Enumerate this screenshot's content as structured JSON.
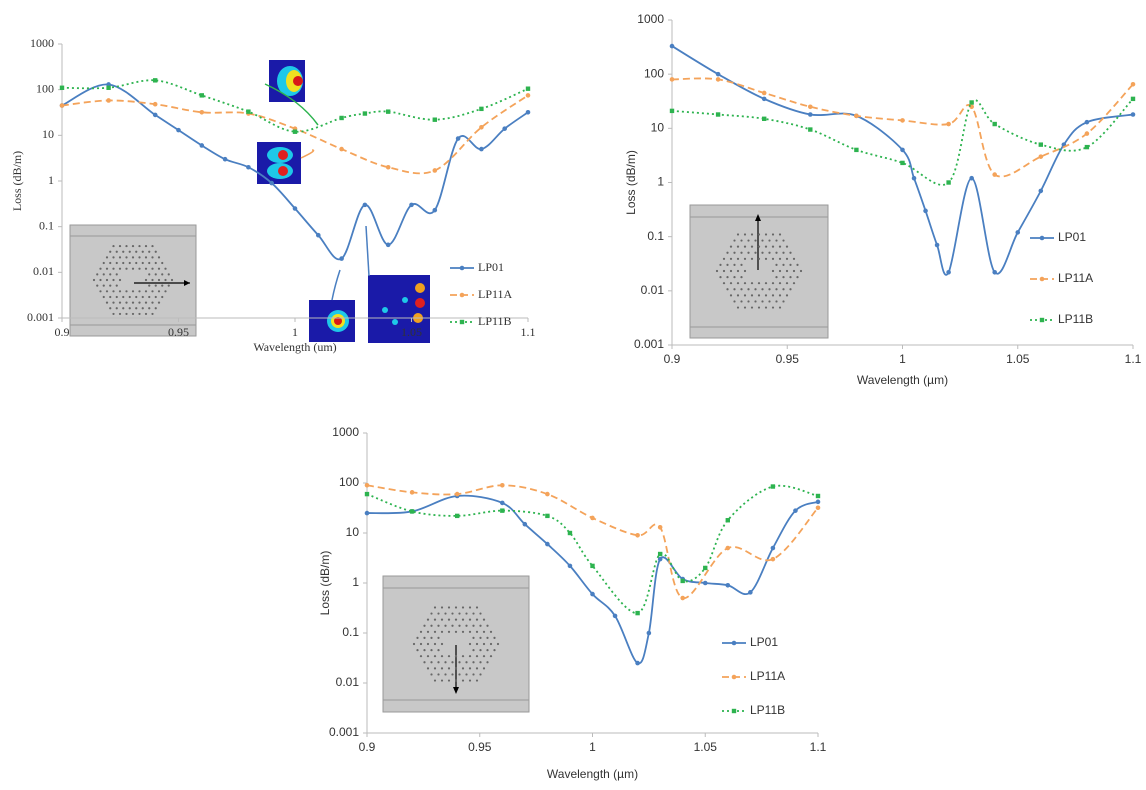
{
  "chart_data": [
    {
      "type": "line",
      "yscale": "log",
      "xlabel": "Wavelength (um)",
      "ylabel": "Loss (dB/m)",
      "xlim": [
        0.9,
        1.1
      ],
      "xticks": [
        0.9,
        0.95,
        1,
        1.05,
        1.1
      ],
      "ylim": [
        0.001,
        1000
      ],
      "yticks": [
        0.001,
        0.01,
        0.1,
        1,
        10,
        100,
        1000
      ],
      "legend": "right-bottom",
      "series": [
        {
          "name": "LP01",
          "color": "#4a7fc1",
          "linestyle": "solid",
          "marker": "circle",
          "x": [
            0.9,
            0.92,
            0.94,
            0.95,
            0.96,
            0.97,
            0.98,
            0.99,
            1.0,
            1.01,
            1.02,
            1.03,
            1.04,
            1.05,
            1.06,
            1.07,
            1.08,
            1.09,
            1.1
          ],
          "values": [
            45,
            130,
            28,
            13,
            6,
            3,
            2,
            0.9,
            0.25,
            0.065,
            0.02,
            0.3,
            0.04,
            0.3,
            0.23,
            8.5,
            5,
            14,
            32
          ]
        },
        {
          "name": "LP11A",
          "color": "#f4a35a",
          "linestyle": "dashed",
          "marker": "circle",
          "x": [
            0.9,
            0.92,
            0.94,
            0.96,
            0.98,
            1.0,
            1.02,
            1.04,
            1.06,
            1.08,
            1.1
          ],
          "values": [
            45,
            58,
            48,
            32,
            30,
            14,
            5,
            2,
            1.7,
            15,
            75
          ]
        },
        {
          "name": "LP11B",
          "color": "#2db34f",
          "linestyle": "dotted",
          "marker": "square",
          "x": [
            0.9,
            0.92,
            0.94,
            0.96,
            0.98,
            1.0,
            1.02,
            1.03,
            1.04,
            1.06,
            1.08,
            1.1
          ],
          "values": [
            110,
            110,
            160,
            75,
            33,
            12,
            24,
            30,
            33,
            22,
            38,
            105
          ]
        }
      ]
    },
    {
      "type": "line",
      "yscale": "log",
      "xlabel": "Wavelength (µm)",
      "ylabel": "Loss (dB/m)",
      "xlim": [
        0.9,
        1.1
      ],
      "xticks": [
        0.9,
        0.95,
        1,
        1.05,
        1.1
      ],
      "ylim": [
        0.001,
        1000
      ],
      "yticks": [
        0.001,
        0.01,
        0.1,
        1,
        10,
        100,
        1000
      ],
      "legend": "right",
      "series": [
        {
          "name": "LP01",
          "color": "#4a7fc1",
          "linestyle": "solid",
          "marker": "circle",
          "x": [
            0.9,
            0.92,
            0.94,
            0.96,
            0.98,
            1.0,
            1.005,
            1.01,
            1.015,
            1.02,
            1.03,
            1.04,
            1.05,
            1.06,
            1.07,
            1.08,
            1.1
          ],
          "values": [
            330,
            100,
            35,
            18,
            17,
            4,
            1.2,
            0.3,
            0.07,
            0.022,
            1.2,
            0.022,
            0.12,
            0.7,
            5,
            13,
            18
          ]
        },
        {
          "name": "LP11A",
          "color": "#f4a35a",
          "linestyle": "dashed",
          "marker": "circle",
          "x": [
            0.9,
            0.92,
            0.94,
            0.96,
            0.98,
            1.0,
            1.02,
            1.03,
            1.04,
            1.06,
            1.08,
            1.1
          ],
          "values": [
            80,
            80,
            45,
            25,
            17,
            14,
            12,
            25,
            1.4,
            3,
            8,
            65
          ]
        },
        {
          "name": "LP11B",
          "color": "#2db34f",
          "linestyle": "dotted",
          "marker": "square",
          "x": [
            0.9,
            0.92,
            0.94,
            0.96,
            0.98,
            1.0,
            1.02,
            1.03,
            1.04,
            1.06,
            1.08,
            1.1
          ],
          "values": [
            21,
            18,
            15,
            9.5,
            4,
            2.3,
            1,
            30,
            12,
            5,
            4.5,
            35
          ]
        }
      ]
    },
    {
      "type": "line",
      "yscale": "log",
      "xlabel": "Wavelength (µm)",
      "ylabel": "Loss (dB/m)",
      "xlim": [
        0.9,
        1.1
      ],
      "xticks": [
        0.9,
        0.95,
        1,
        1.05,
        1.1
      ],
      "ylim": [
        0.001,
        1000
      ],
      "yticks": [
        0.001,
        0.01,
        0.1,
        1,
        10,
        100,
        1000
      ],
      "legend": "right-bottom",
      "series": [
        {
          "name": "LP01",
          "color": "#4a7fc1",
          "linestyle": "solid",
          "marker": "circle",
          "x": [
            0.9,
            0.92,
            0.94,
            0.96,
            0.97,
            0.98,
            0.99,
            1.0,
            1.01,
            1.02,
            1.025,
            1.03,
            1.04,
            1.05,
            1.06,
            1.07,
            1.08,
            1.09,
            1.1
          ],
          "values": [
            25,
            27,
            55,
            40,
            15,
            6,
            2.2,
            0.6,
            0.22,
            0.025,
            0.1,
            3,
            1.2,
            1,
            0.9,
            0.65,
            5,
            28,
            42
          ]
        },
        {
          "name": "LP11A",
          "color": "#f4a35a",
          "linestyle": "dashed",
          "marker": "circle",
          "x": [
            0.9,
            0.92,
            0.94,
            0.96,
            0.98,
            1.0,
            1.02,
            1.03,
            1.04,
            1.06,
            1.08,
            1.1
          ],
          "values": [
            90,
            65,
            60,
            90,
            60,
            20,
            9,
            13,
            0.5,
            5,
            3,
            32
          ]
        },
        {
          "name": "LP11B",
          "color": "#2db34f",
          "linestyle": "dotted",
          "marker": "square",
          "x": [
            0.9,
            0.92,
            0.94,
            0.96,
            0.98,
            0.99,
            1.0,
            1.02,
            1.03,
            1.04,
            1.05,
            1.06,
            1.08,
            1.1
          ],
          "values": [
            60,
            27,
            22,
            28,
            22,
            10,
            2.2,
            0.25,
            3.8,
            1.1,
            2,
            18,
            85,
            55
          ]
        }
      ]
    }
  ]
}
